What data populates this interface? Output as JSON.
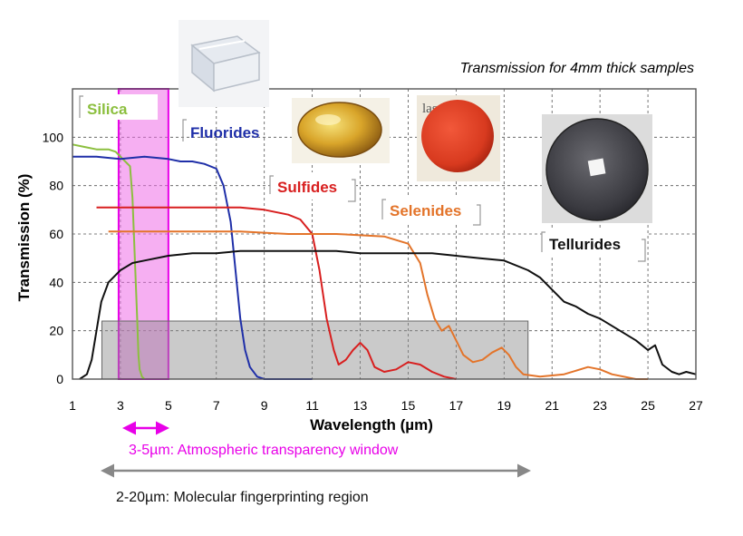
{
  "colors": {
    "silica": "#8cbf3f",
    "fluorides": "#1f2fa8",
    "sulfides": "#d81f1f",
    "selenides": "#e3742a",
    "tellurides": "#111111",
    "magenta": "#e800e8",
    "grey_band": "#8a8a8a"
  },
  "images": {
    "silica_sample": "clear glass block photo",
    "sulfides_sample": "yellow lens photo",
    "selenides_sample": "red disk photo",
    "tellurides_sample": "dark disk photo"
  },
  "chart_data": {
    "type": "line",
    "subtitle": "Transmission for 4mm thick samples",
    "xlabel": "Wavelength (µm)",
    "ylabel": "Transmission (%)",
    "xlim": [
      1,
      27
    ],
    "ylim": [
      0,
      120
    ],
    "xticks": [
      1,
      3,
      5,
      7,
      9,
      11,
      13,
      15,
      17,
      19,
      21,
      23,
      25,
      27
    ],
    "yticks": [
      0,
      20,
      40,
      60,
      80,
      100
    ],
    "grid": true,
    "series": [
      {
        "name": "Silica",
        "color": "#8cbf3f",
        "x": [
          1.0,
          1.5,
          2.0,
          2.5,
          2.8,
          3.0,
          3.2,
          3.4,
          3.5,
          3.6,
          3.7,
          3.75,
          3.8,
          3.9,
          4.0
        ],
        "y": [
          97,
          96,
          95,
          95,
          94,
          92,
          90,
          88,
          75,
          50,
          25,
          10,
          4,
          1,
          0
        ]
      },
      {
        "name": "Fluorides",
        "color": "#1f2fa8",
        "x": [
          1.0,
          2.0,
          3.0,
          4.0,
          5.0,
          5.5,
          6.0,
          6.5,
          7.0,
          7.3,
          7.6,
          7.8,
          8.0,
          8.2,
          8.4,
          8.7,
          9.0,
          10.0,
          11.0
        ],
        "y": [
          92,
          92,
          91,
          92,
          91,
          90,
          90,
          89,
          87,
          80,
          65,
          45,
          25,
          12,
          5,
          1,
          0,
          0,
          0
        ]
      },
      {
        "name": "Sulfides",
        "color": "#d81f1f",
        "x": [
          2.0,
          4.0,
          6.0,
          8.0,
          9.0,
          10.0,
          10.5,
          11.0,
          11.3,
          11.6,
          11.9,
          12.1,
          12.4,
          12.7,
          13.0,
          13.3,
          13.6,
          14.0,
          14.5,
          15.0,
          15.5,
          16.0,
          16.5,
          17.0
        ],
        "y": [
          71,
          71,
          71,
          71,
          70,
          68,
          66,
          60,
          45,
          25,
          12,
          6,
          8,
          12,
          15,
          12,
          5,
          3,
          4,
          7,
          6,
          3,
          1,
          0
        ]
      },
      {
        "name": "Selenides",
        "color": "#e3742a",
        "x": [
          2.5,
          4.0,
          6.0,
          8.0,
          10.0,
          12.0,
          14.0,
          15.0,
          15.5,
          15.8,
          16.1,
          16.4,
          16.7,
          17.0,
          17.3,
          17.7,
          18.1,
          18.5,
          18.9,
          19.2,
          19.5,
          19.8,
          20.5,
          21.5,
          22.5,
          23.0,
          23.5,
          24.5,
          25.0
        ],
        "y": [
          61,
          61,
          61,
          61,
          60,
          60,
          59,
          56,
          48,
          35,
          25,
          20,
          22,
          16,
          10,
          7,
          8,
          11,
          13,
          10,
          5,
          2,
          1,
          2,
          5,
          4,
          2,
          0,
          0
        ]
      },
      {
        "name": "Tellurides",
        "color": "#111111",
        "x": [
          1.3,
          1.6,
          1.8,
          2.0,
          2.2,
          2.5,
          3.0,
          3.5,
          4.0,
          5.0,
          6.0,
          7.0,
          8.0,
          9.0,
          10.0,
          11.0,
          12.0,
          13.0,
          14.0,
          15.0,
          16.0,
          17.0,
          18.0,
          19.0,
          20.0,
          20.5,
          21.0,
          21.5,
          22.0,
          22.5,
          23.0,
          23.5,
          24.0,
          24.5,
          25.0,
          25.3,
          25.6,
          26.0,
          26.3,
          26.6,
          27.0
        ],
        "y": [
          0,
          2,
          8,
          20,
          32,
          40,
          45,
          48,
          49,
          51,
          52,
          52,
          53,
          53,
          53,
          53,
          53,
          52,
          52,
          52,
          52,
          51,
          50,
          49,
          45,
          42,
          37,
          32,
          30,
          27,
          25,
          22,
          19,
          16,
          12,
          14,
          6,
          3,
          2,
          3,
          2
        ]
      }
    ],
    "regions": [
      {
        "type": "atmospheric",
        "x": [
          3,
          5
        ],
        "y": [
          0,
          120
        ],
        "color": "#e800e8"
      },
      {
        "type": "fingerprint",
        "x": [
          2,
          20
        ],
        "y": [
          0,
          21
        ],
        "color": "#8a8a8a"
      }
    ],
    "annotations": {
      "atmospheric": "3-5µm: Atmospheric transparency window",
      "fingerprint": "2-20µm: Molecular fingerprinting region"
    }
  }
}
